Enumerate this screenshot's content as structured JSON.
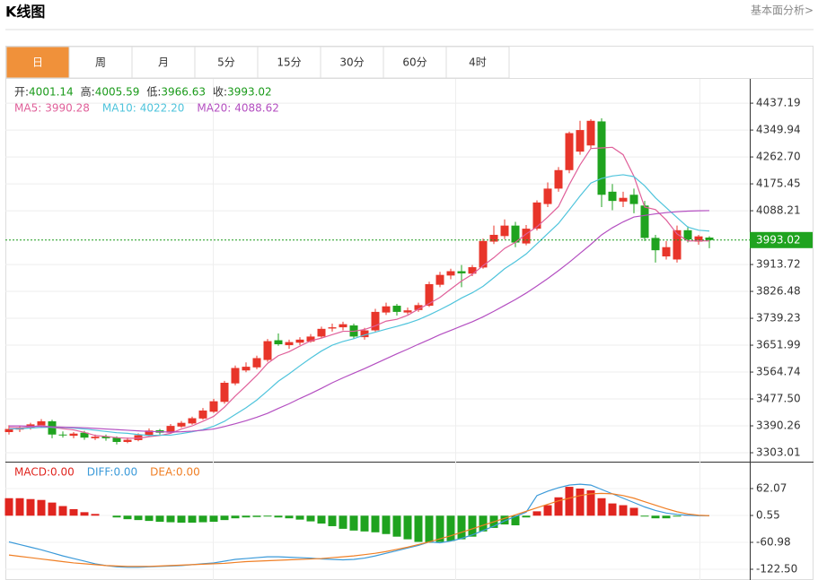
{
  "header": {
    "title": "K线图",
    "link": "基本面分析>"
  },
  "tabs": [
    "日",
    "周",
    "月",
    "5分",
    "15分",
    "30分",
    "60分",
    "4时"
  ],
  "active_tab": 0,
  "chart_data": {
    "type": "candlestick",
    "up_color": "#e8352a",
    "down_color": "#1fa31f",
    "ylim": [
      3274,
      4516
    ],
    "yticks": [
      4437.19,
      4349.94,
      {
        "value": 4262.7,
        "label": "4262.70"
      },
      4175.45,
      4088.21,
      3913.72,
      3826.48,
      3739.23,
      3651.99,
      3564.74,
      {
        "value": 3477.5,
        "label": "3477.50"
      },
      3390.26,
      3303.01
    ],
    "grid": true,
    "info_labels": [
      "开:",
      "高:",
      "低:",
      "收:"
    ],
    "info_color": "#1a9a1a",
    "candles": [
      [
        3370,
        3392,
        3362,
        3380
      ],
      [
        3378,
        3390,
        3370,
        3385
      ],
      [
        3384,
        3400,
        3378,
        3395
      ],
      [
        3392,
        3412,
        3386,
        3405
      ],
      [
        3405,
        3410,
        3350,
        3362
      ],
      [
        3362,
        3372,
        3352,
        3360
      ],
      [
        3358,
        3370,
        3350,
        3365
      ],
      [
        3368,
        3374,
        3345,
        3352
      ],
      [
        3350,
        3362,
        3344,
        3355
      ],
      [
        3356,
        3362,
        3342,
        3350
      ],
      [
        3352,
        3356,
        3330,
        3338
      ],
      [
        3338,
        3352,
        3334,
        3345
      ],
      [
        3344,
        3366,
        3340,
        3360
      ],
      [
        3358,
        3382,
        3354,
        3375
      ],
      [
        3376,
        3380,
        3362,
        3368
      ],
      [
        3368,
        3396,
        3364,
        3390
      ],
      [
        3388,
        3406,
        3384,
        3400
      ],
      [
        3398,
        3420,
        3394,
        3415
      ],
      [
        3414,
        3448,
        3410,
        3440
      ],
      [
        3436,
        3478,
        3432,
        3470
      ],
      [
        3468,
        3536,
        3462,
        3530
      ],
      [
        3528,
        3586,
        3522,
        3578
      ],
      [
        3570,
        3596,
        3564,
        3582
      ],
      [
        3580,
        3618,
        3574,
        3610
      ],
      [
        3604,
        3672,
        3598,
        3665
      ],
      [
        3668,
        3690,
        3650,
        3655
      ],
      [
        3652,
        3670,
        3640,
        3662
      ],
      [
        3660,
        3678,
        3652,
        3670
      ],
      [
        3664,
        3688,
        3660,
        3680
      ],
      [
        3680,
        3712,
        3676,
        3705
      ],
      [
        3706,
        3722,
        3696,
        3710
      ],
      [
        3710,
        3728,
        3700,
        3720
      ],
      [
        3716,
        3722,
        3672,
        3680
      ],
      [
        3678,
        3708,
        3670,
        3700
      ],
      [
        3700,
        3770,
        3696,
        3760
      ],
      [
        3758,
        3790,
        3750,
        3778
      ],
      [
        3780,
        3786,
        3748,
        3760
      ],
      [
        3758,
        3774,
        3752,
        3765
      ],
      [
        3766,
        3790,
        3760,
        3782
      ],
      [
        3780,
        3858,
        3776,
        3850
      ],
      [
        3848,
        3890,
        3840,
        3880
      ],
      [
        3878,
        3900,
        3866,
        3892
      ],
      [
        3892,
        3912,
        3840,
        3885
      ],
      [
        3884,
        3912,
        3876,
        3905
      ],
      [
        3904,
        3998,
        3900,
        3990
      ],
      [
        3988,
        4040,
        3980,
        4010
      ],
      [
        4006,
        4060,
        3996,
        4040
      ],
      [
        4040,
        4052,
        3970,
        3985
      ],
      [
        3982,
        4042,
        3976,
        4030
      ],
      [
        4030,
        4122,
        4024,
        4115
      ],
      [
        4110,
        4180,
        4100,
        4160
      ],
      [
        4160,
        4230,
        4150,
        4220
      ],
      [
        4220,
        4345,
        4210,
        4340
      ],
      [
        4280,
        4380,
        4270,
        4350
      ],
      [
        4300,
        4385,
        4290,
        4380
      ],
      [
        4378,
        4388,
        4100,
        4140
      ],
      [
        4150,
        4175,
        4090,
        4120
      ],
      [
        4118,
        4150,
        4100,
        4130
      ],
      [
        4140,
        4160,
        4080,
        4110
      ],
      [
        4105,
        4120,
        3990,
        4000
      ],
      [
        4000,
        4010,
        3920,
        3960
      ],
      [
        3940,
        3990,
        3930,
        3970
      ],
      [
        3930,
        4040,
        3920,
        4025
      ],
      [
        4025,
        4038,
        3985,
        3995
      ],
      [
        3988,
        4010,
        3978,
        4005
      ],
      [
        4001.14,
        4005.59,
        3966.63,
        3993.02
      ]
    ],
    "series": [
      {
        "name": "MA5:",
        "color": "#e0609a",
        "current": 3990.28,
        "values": [
          3385,
          3384,
          3386,
          3392,
          3385,
          3381,
          3377,
          3369,
          3359,
          3356,
          3352,
          3350,
          3350,
          3355,
          3359,
          3366,
          3380,
          3390,
          3405,
          3421,
          3451,
          3487,
          3520,
          3554,
          3593,
          3618,
          3631,
          3649,
          3666,
          3675,
          3686,
          3697,
          3697,
          3703,
          3715,
          3730,
          3736,
          3749,
          3769,
          3787,
          3807,
          3834,
          3860,
          3882,
          3910,
          3936,
          3966,
          3986,
          4013,
          4036,
          4068,
          4102,
          4173,
          4237,
          4290,
          4292,
          4294,
          4270,
          4200,
          4100,
          4092,
          4058,
          4013,
          3990,
          3991,
          3990.28
        ]
      },
      {
        "name": "MA10:",
        "color": "#4fc4dc",
        "current": {
          "value": 4022.2,
          "label": "4022.20"
        },
        "values": [
          3380,
          3381,
          3383,
          3385,
          3386,
          3385,
          3383,
          3380,
          3376,
          3372,
          3368,
          3366,
          3362,
          3359,
          3360,
          3360,
          3365,
          3371,
          3378,
          3389,
          3405,
          3427,
          3449,
          3474,
          3504,
          3535,
          3559,
          3585,
          3610,
          3633,
          3652,
          3664,
          3673,
          3685,
          3694,
          3704,
          3713,
          3723,
          3735,
          3750,
          3767,
          3785,
          3805,
          3822,
          3843,
          3871,
          3900,
          3923,
          3948,
          3981,
          4014,
          4047,
          4091,
          4136,
          4178,
          4193,
          4201,
          4205,
          4199,
          4169,
          4130,
          4098,
          4066,
          4035,
          4025,
          4022.2
        ]
      },
      {
        "name": "MA20:",
        "color": "#b44fc1",
        "current": 4088.62,
        "values": [
          3390,
          3390,
          3389,
          3388,
          3387,
          3386,
          3385,
          3384,
          3382,
          3380,
          3378,
          3376,
          3374,
          3372,
          3371,
          3370,
          3371,
          3373,
          3376,
          3380,
          3388,
          3397,
          3407,
          3418,
          3431,
          3447,
          3462,
          3479,
          3495,
          3512,
          3530,
          3546,
          3561,
          3576,
          3592,
          3608,
          3624,
          3639,
          3655,
          3670,
          3686,
          3700,
          3714,
          3728,
          3744,
          3762,
          3781,
          3800,
          3821,
          3844,
          3868,
          3894,
          3921,
          3950,
          3979,
          4010,
          4033,
          4052,
          4068,
          4073,
          4078,
          4082,
          4085,
          4087,
          4088,
          4088.62
        ]
      }
    ],
    "macd": {
      "type": "bar",
      "ylim": [
        -143,
        121.5
      ],
      "yticks": [
        62.07,
        0.55,
        -60.98,
        {
          "value": -122.5,
          "label": "-122.50"
        }
      ],
      "series": [
        {
          "name": "MACD:",
          "color": "#e0251f",
          "down_color": "#1fa31f",
          "current": {
            "value": 0,
            "label": "0.00"
          },
          "values": [
            40,
            40,
            38,
            36,
            30,
            22,
            15,
            8,
            4,
            0,
            -4,
            -8,
            -10,
            -12,
            -14,
            -15,
            -16,
            -16,
            -15,
            -14,
            -10,
            -6,
            -4,
            -3,
            -2,
            -4,
            -6,
            -9,
            -13,
            -18,
            -24,
            -30,
            -34,
            -36,
            -38,
            -42,
            -48,
            -54,
            -60,
            -62,
            -60,
            -58,
            -54,
            -48,
            -36,
            -28,
            -20,
            -22,
            -4,
            10,
            24,
            42,
            66,
            62,
            58,
            40,
            28,
            24,
            18,
            -2,
            -6,
            -6,
            -2,
            2,
            1,
            0
          ]
        },
        {
          "name": "DIFF:",
          "color": "#3b9ad9",
          "current": {
            "value": 0,
            "label": "0.00"
          },
          "values": [
            -60,
            -66,
            -72,
            -78,
            -85,
            -92,
            -98,
            -104,
            -110,
            -114,
            -117,
            -118,
            -118,
            -117,
            -116,
            -115,
            -114,
            -112,
            -110,
            -108,
            -104,
            -100,
            -98,
            -96,
            -94,
            -94,
            -95,
            -96,
            -97,
            -99,
            -100,
            -101,
            -100,
            -97,
            -92,
            -86,
            -80,
            -74,
            -68,
            -60,
            -62,
            -58,
            -52,
            -44,
            -34,
            -24,
            -12,
            -2,
            8,
            46,
            56,
            64,
            70,
            72,
            70,
            60,
            50,
            40,
            30,
            20,
            12,
            6,
            3,
            1,
            0,
            0
          ]
        },
        {
          "name": "DEA:",
          "color": "#f07f25",
          "current": {
            "value": 0,
            "label": "0.00"
          },
          "values": [
            -90,
            -93,
            -96,
            -99,
            -102,
            -105,
            -108,
            -110,
            -112,
            -114,
            -115,
            -116,
            -116,
            -116,
            -115,
            -114,
            -113,
            -112,
            -111,
            -110,
            -109,
            -107,
            -105,
            -104,
            -103,
            -102,
            -101,
            -100,
            -99,
            -98,
            -96,
            -94,
            -92,
            -89,
            -86,
            -82,
            -77,
            -72,
            -66,
            -60,
            -53,
            -46,
            -38,
            -30,
            -22,
            -14,
            -6,
            2,
            10,
            18,
            26,
            34,
            40,
            46,
            50,
            51,
            50,
            46,
            40,
            32,
            24,
            16,
            9,
            4,
            1,
            0
          ]
        }
      ]
    }
  }
}
